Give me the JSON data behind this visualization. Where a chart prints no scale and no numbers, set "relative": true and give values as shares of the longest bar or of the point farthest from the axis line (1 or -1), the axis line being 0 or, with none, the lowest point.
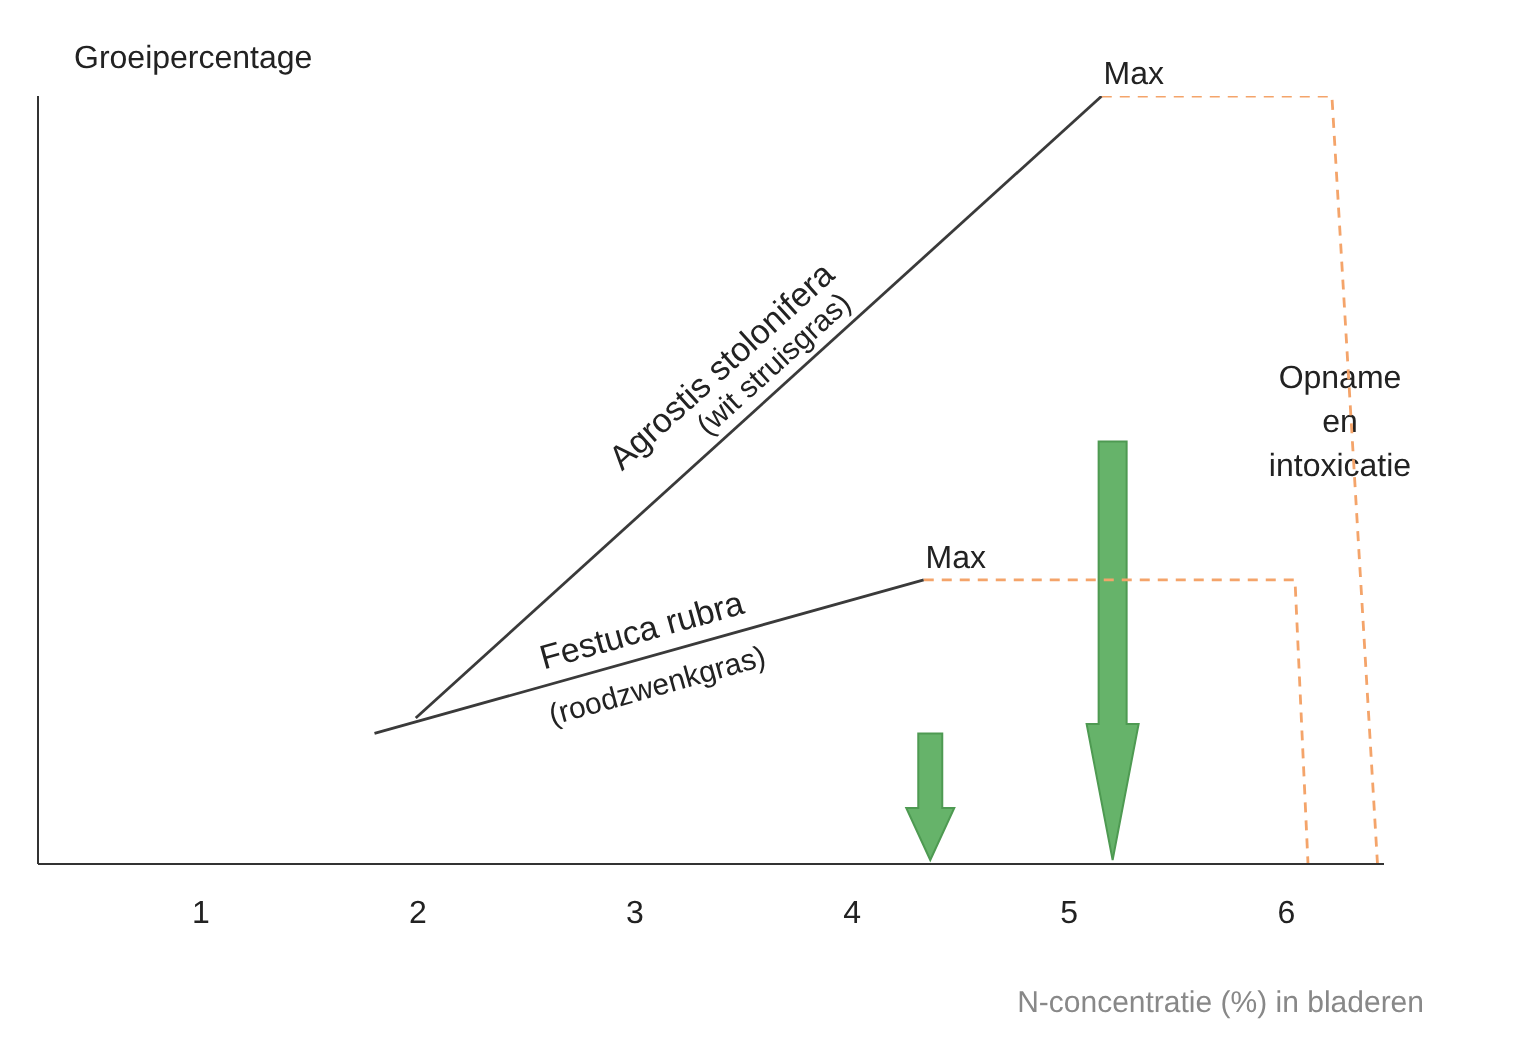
{
  "chart_data": {
    "type": "line",
    "relative": true,
    "ylabel": "Groeipercentage",
    "xlabel": "N-concentratie (%) in bladeren",
    "xlim": [
      0.25,
      6.45
    ],
    "xticks": [
      1,
      2,
      3,
      4,
      5,
      6
    ],
    "marker": "none",
    "series": [
      {
        "name": "Agrostis stolonifera (wit struisgras)",
        "color": "#3a3a3a",
        "x": [
          1.99,
          5.15
        ],
        "values": [
          0.19,
          1
        ]
      },
      {
        "name": "Festuca rubra (roodzwenkgras)",
        "color": "#3a3a3a",
        "x": [
          1.8,
          4.33
        ],
        "values": [
          0.17,
          0.37
        ]
      },
      {
        "color": "#f4a46a",
        "line_style": "dashed",
        "x": [
          5.15,
          6.21,
          6.42
        ],
        "values": [
          1,
          1,
          0
        ]
      },
      {
        "color": "#f4a46a",
        "line_style": "dashed",
        "x": [
          4.33,
          6.04,
          6.1
        ],
        "values": [
          0.37,
          0.37,
          0
        ]
      }
    ],
    "annotations": [
      {
        "text": "Max",
        "x": 5.15,
        "y": 1
      },
      {
        "text": "Max",
        "x": 4.33,
        "y": 0.37
      },
      "Opname en intoxicatie"
    ]
  }
}
